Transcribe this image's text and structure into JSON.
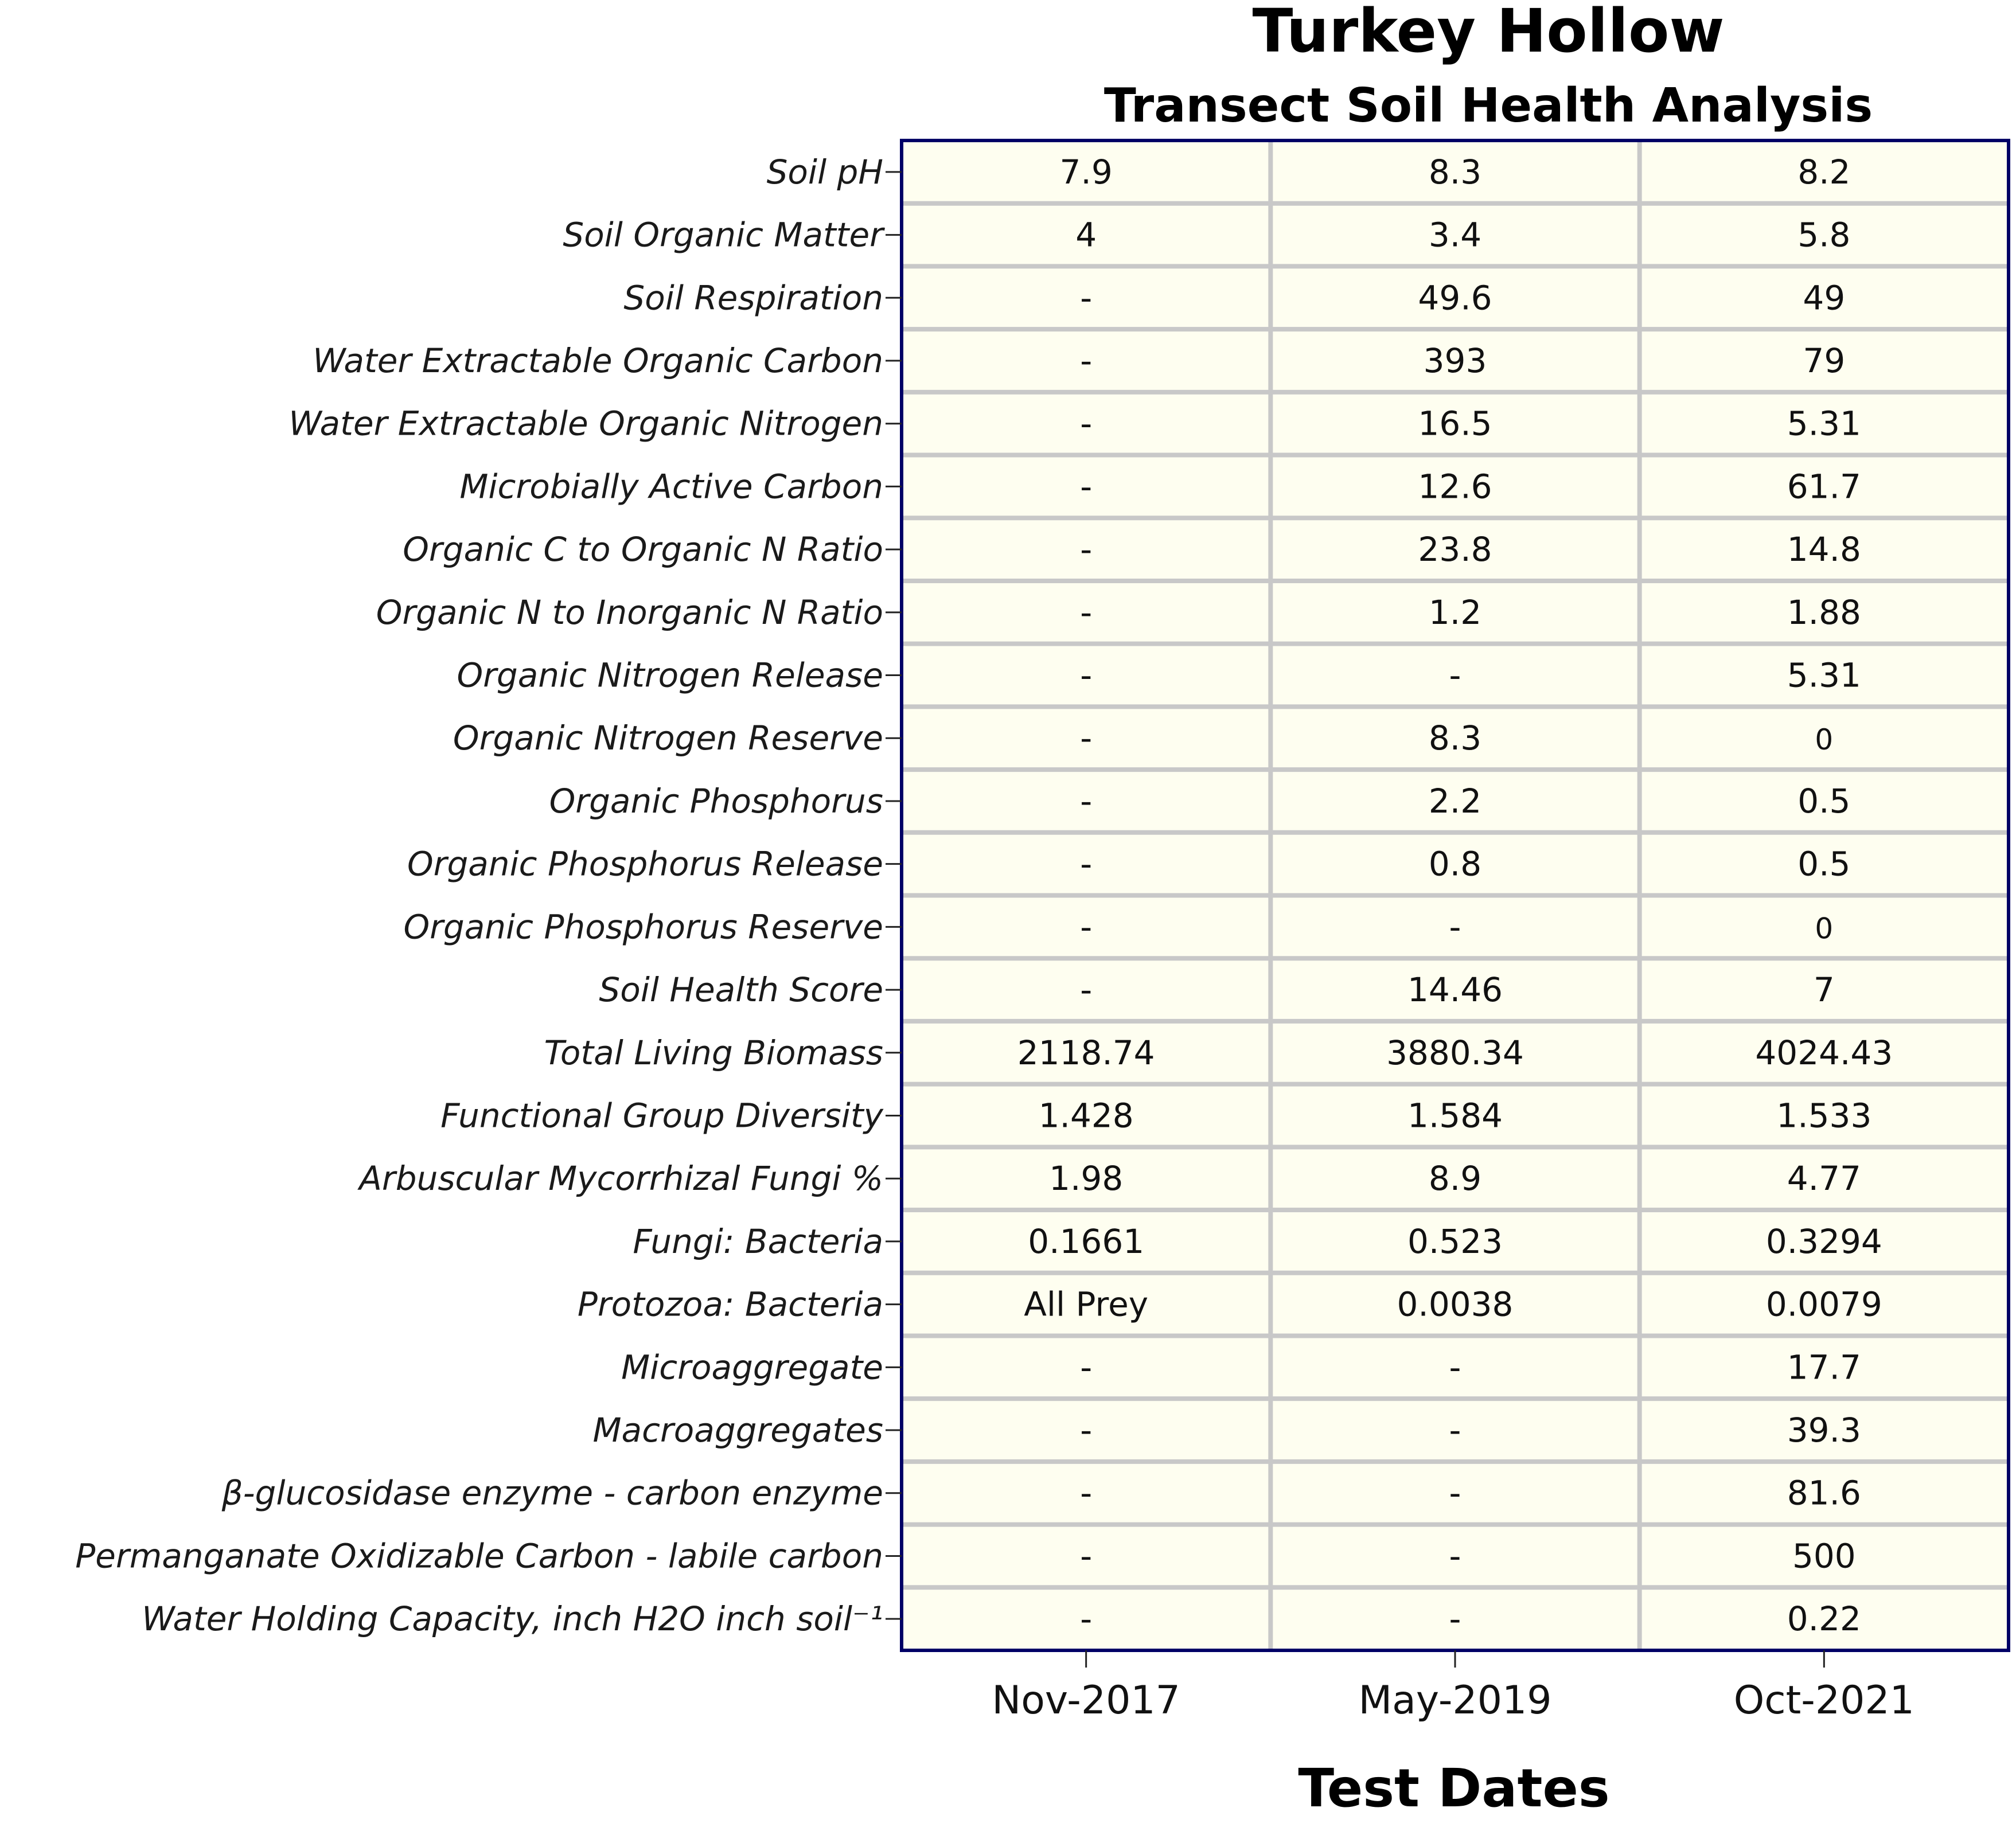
{
  "title": "Turkey Hollow",
  "subtitle": "Transect Soil Health Analysis",
  "colors": {
    "cell_background": "#fefef0",
    "frame": "#000066",
    "grid": "#c8c8c8"
  },
  "chart_data": {
    "type": "table",
    "xlabel": "Test Dates",
    "columns": [
      "Nov-2017",
      "May-2019",
      "Oct-2021"
    ],
    "rows": [
      {
        "label": "Soil pH",
        "values": [
          "7.9",
          "8.3",
          "8.2"
        ]
      },
      {
        "label": "Soil Organic Matter",
        "values": [
          "4",
          "3.4",
          "5.8"
        ]
      },
      {
        "label": "Soil Respiration",
        "values": [
          "-",
          "49.6",
          "49"
        ]
      },
      {
        "label": "Water Extractable Organic Carbon",
        "values": [
          "-",
          "393",
          "79"
        ]
      },
      {
        "label": "Water Extractable Organic Nitrogen",
        "values": [
          "-",
          "16.5",
          "5.31"
        ]
      },
      {
        "label": "Microbially Active Carbon",
        "values": [
          "-",
          "12.6",
          "61.7"
        ]
      },
      {
        "label": "Organic C to Organic N Ratio",
        "values": [
          "-",
          "23.8",
          "14.8"
        ]
      },
      {
        "label": "Organic N to Inorganic N Ratio",
        "values": [
          "-",
          "1.2",
          "1.88"
        ]
      },
      {
        "label": "Organic Nitrogen Release",
        "values": [
          "-",
          "-",
          "5.31"
        ]
      },
      {
        "label": "Organic Nitrogen Reserve",
        "values": [
          "-",
          "8.3",
          "0"
        ]
      },
      {
        "label": "Organic Phosphorus",
        "values": [
          "-",
          "2.2",
          "0.5"
        ]
      },
      {
        "label": "Organic Phosphorus Release",
        "values": [
          "-",
          "0.8",
          "0.5"
        ]
      },
      {
        "label": "Organic Phosphorus Reserve",
        "values": [
          "-",
          "-",
          "0"
        ]
      },
      {
        "label": "Soil Health Score",
        "values": [
          "-",
          "14.46",
          "7"
        ]
      },
      {
        "label": "Total Living Biomass",
        "values": [
          "2118.74",
          "3880.34",
          "4024.43"
        ]
      },
      {
        "label": "Functional Group Diversity",
        "values": [
          "1.428",
          "1.584",
          "1.533"
        ]
      },
      {
        "label": "Arbuscular Mycorrhizal Fungi % ",
        "values": [
          "1.98",
          "8.9",
          "4.77"
        ]
      },
      {
        "label": "Fungi: Bacteria",
        "values": [
          "0.1661",
          "0.523",
          "0.3294"
        ]
      },
      {
        "label": "Protozoa: Bacteria",
        "values": [
          "All Prey",
          "0.0038",
          "0.0079"
        ]
      },
      {
        "label": "Microaggregate",
        "values": [
          "-",
          "-",
          "17.7"
        ]
      },
      {
        "label": "Macroaggregates",
        "values": [
          "-",
          "-",
          "39.3"
        ]
      },
      {
        "label": "β-glucosidase enzyme - carbon enzyme",
        "values": [
          "-",
          "-",
          "81.6"
        ]
      },
      {
        "label": "Permanganate Oxidizable Carbon - labile carbon",
        "values": [
          "-",
          "-",
          "500"
        ]
      },
      {
        "label": "Water Holding Capacity, inch H2O inch soil⁻¹",
        "values": [
          "-",
          "-",
          "0.22"
        ]
      }
    ]
  }
}
